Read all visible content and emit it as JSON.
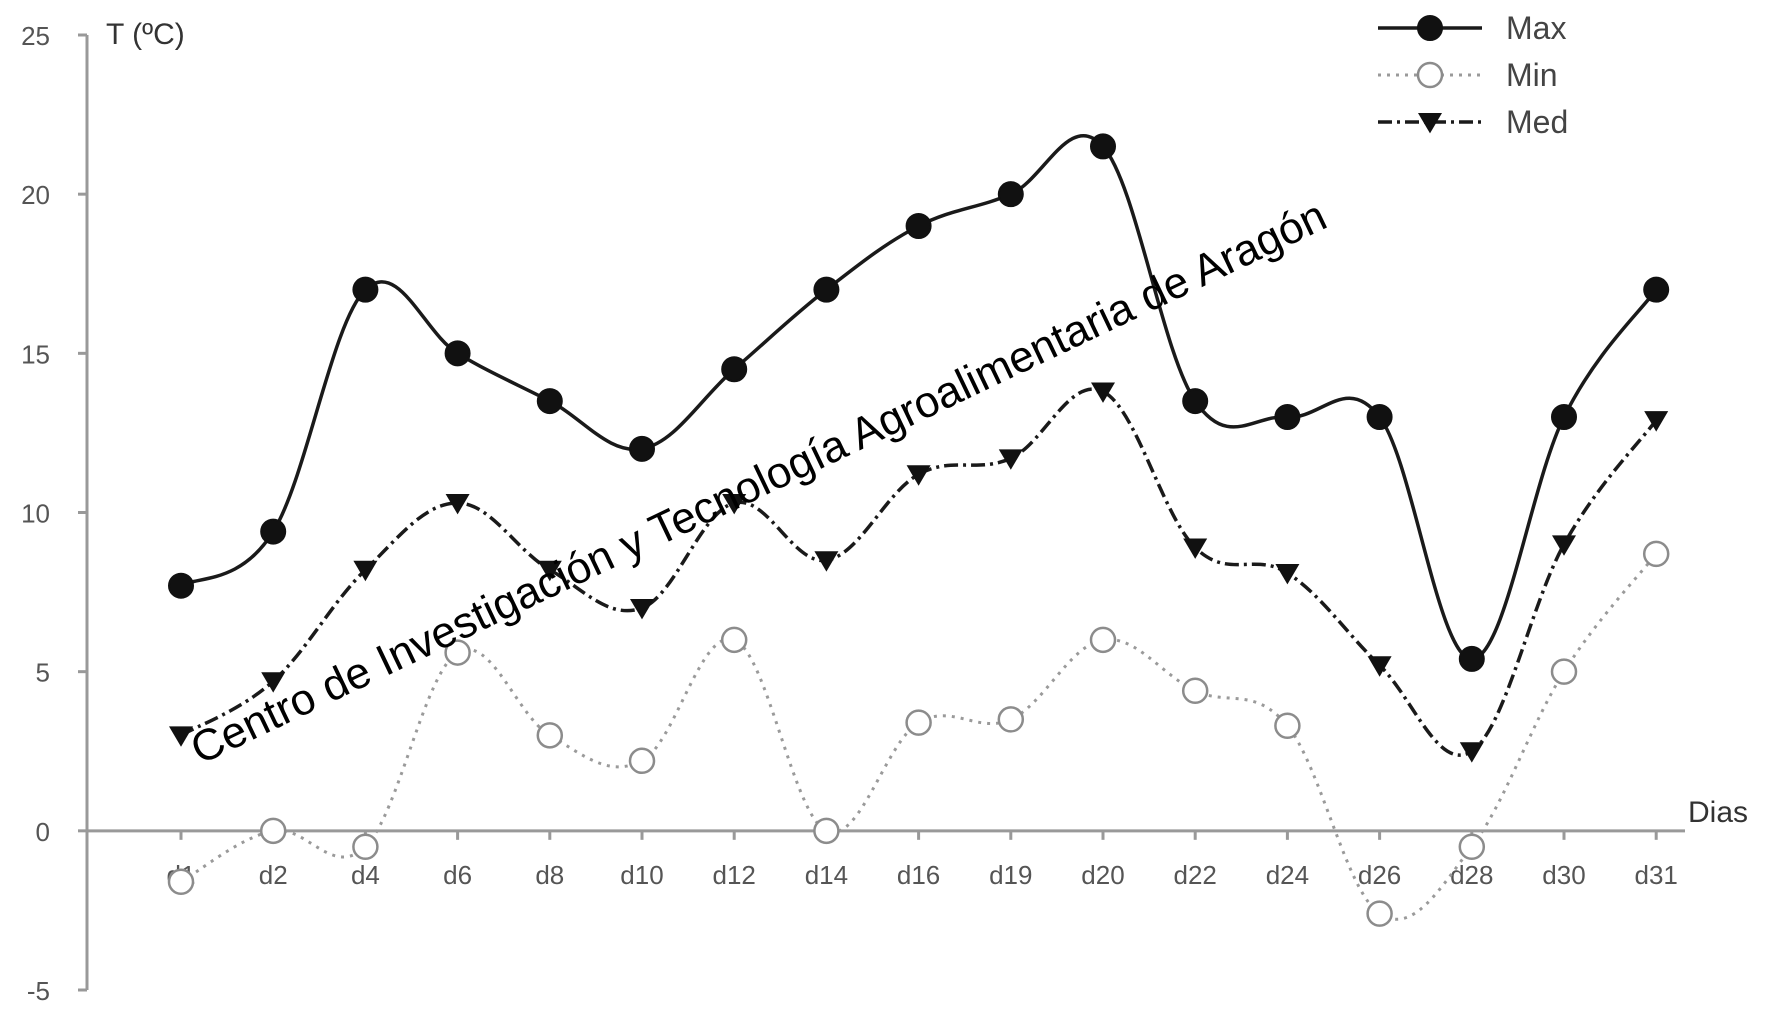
{
  "chart_data": {
    "type": "line",
    "title": "",
    "ylabel": "T (ºC)",
    "xlabel": "Dias",
    "categories": [
      "d1",
      "d2",
      "d4",
      "d6",
      "d8",
      "d10",
      "d12",
      "d14",
      "d16",
      "d19",
      "d20",
      "d22",
      "d24",
      "d26",
      "d28",
      "d30",
      "d31"
    ],
    "ylim": [
      -5,
      25
    ],
    "yticks": [
      -5,
      0,
      5,
      10,
      15,
      20,
      25
    ],
    "ytick_labels": [
      "-5",
      "0",
      "5",
      "10",
      "15",
      "20",
      "25"
    ],
    "grid": false,
    "legend_position": "top-right",
    "series": [
      {
        "name": "Max",
        "marker": "filled-circle",
        "line": "solid",
        "values": [
          7.7,
          9.4,
          17,
          15,
          13.5,
          12,
          14.5,
          17,
          19,
          20,
          21.5,
          13.5,
          13,
          13,
          5.4,
          13,
          17
        ]
      },
      {
        "name": "Min",
        "marker": "open-circle",
        "line": "dotted",
        "values": [
          -1.6,
          0,
          -0.5,
          5.6,
          3,
          2.2,
          6,
          0,
          3.4,
          3.5,
          6,
          4.4,
          3.3,
          -2.6,
          -0.5,
          5,
          8.7
        ]
      },
      {
        "name": "Med",
        "marker": "filled-triangle-down",
        "line": "dash-dot",
        "values": [
          3,
          4.7,
          8.2,
          10.3,
          8.2,
          7,
          10.3,
          8.5,
          11.2,
          11.7,
          13.8,
          8.9,
          8.1,
          5.2,
          2.5,
          9,
          12.9
        ]
      }
    ]
  },
  "watermark": {
    "text": "Centro de Investigación y Tecnología Agroalimentaria de Aragón"
  },
  "colors": {
    "line": "#1a1a1a",
    "min_line": "#9a9a9a",
    "axis": "#999999",
    "text": "#555555"
  }
}
